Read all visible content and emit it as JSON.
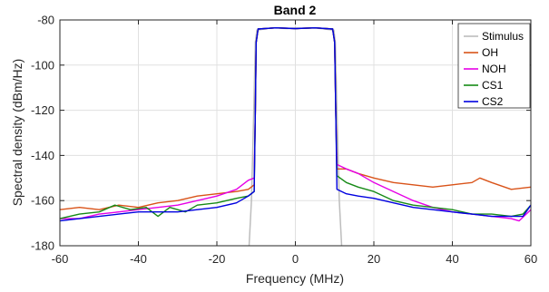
{
  "chart_data": {
    "type": "line",
    "title": "Band 2",
    "xlabel": "Frequency (MHz)",
    "ylabel": "Spectral density (dBm/Hz)",
    "xlim": [
      -60,
      60
    ],
    "ylim": [
      -180,
      -80
    ],
    "xticks": [
      -60,
      -40,
      -20,
      0,
      20,
      40,
      60
    ],
    "yticks": [
      -180,
      -160,
      -140,
      -120,
      -100,
      -80
    ],
    "xtick_labels": [
      "-60",
      "-40",
      "-20",
      "0",
      "20",
      "40",
      "60"
    ],
    "ytick_labels": [
      "-180",
      "-160",
      "-140",
      "-120",
      "-100",
      "-80"
    ],
    "grid": true,
    "legend_position": "top-right",
    "series": [
      {
        "name": "Stimulus",
        "color": "#bdbdbd",
        "points": [
          [
            -11.8,
            -180
          ],
          [
            -11.2,
            -160
          ],
          [
            -10.6,
            -120
          ],
          [
            -10.2,
            -90
          ],
          [
            -9.8,
            -84.5
          ],
          [
            -6,
            -83.5
          ],
          [
            -2,
            -83.8
          ],
          [
            2,
            -83.6
          ],
          [
            6,
            -83.7
          ],
          [
            9.8,
            -84.5
          ],
          [
            10.2,
            -90
          ],
          [
            10.6,
            -120
          ],
          [
            11.2,
            -160
          ],
          [
            11.8,
            -180
          ]
        ]
      },
      {
        "name": "OH",
        "color": "#d95319",
        "points": [
          [
            -60,
            -164
          ],
          [
            -55,
            -163
          ],
          [
            -50,
            -164
          ],
          [
            -45,
            -162
          ],
          [
            -40,
            -163
          ],
          [
            -35,
            -161
          ],
          [
            -30,
            -160
          ],
          [
            -25,
            -158
          ],
          [
            -20,
            -157
          ],
          [
            -15,
            -156
          ],
          [
            -12,
            -155
          ],
          [
            -10.5,
            -153
          ],
          [
            -10.2,
            -120
          ],
          [
            -10,
            -90
          ],
          [
            -9.5,
            -84
          ],
          [
            -5,
            -83.5
          ],
          [
            0,
            -83.8
          ],
          [
            5,
            -83.5
          ],
          [
            9.5,
            -84
          ],
          [
            10,
            -90
          ],
          [
            10.3,
            -120
          ],
          [
            10.6,
            -146
          ],
          [
            13,
            -146
          ],
          [
            16,
            -148
          ],
          [
            20,
            -150
          ],
          [
            25,
            -152
          ],
          [
            30,
            -153
          ],
          [
            35,
            -154
          ],
          [
            40,
            -153
          ],
          [
            45,
            -152
          ],
          [
            47,
            -150
          ],
          [
            50,
            -152
          ],
          [
            55,
            -155
          ],
          [
            60,
            -154
          ]
        ]
      },
      {
        "name": "NOH",
        "color": "#e600e6",
        "points": [
          [
            -60,
            -168
          ],
          [
            -55,
            -168
          ],
          [
            -50,
            -166
          ],
          [
            -45,
            -165
          ],
          [
            -40,
            -164
          ],
          [
            -35,
            -163
          ],
          [
            -30,
            -162
          ],
          [
            -25,
            -160
          ],
          [
            -20,
            -158
          ],
          [
            -15,
            -155
          ],
          [
            -12,
            -151
          ],
          [
            -10.5,
            -150
          ],
          [
            -10.2,
            -120
          ],
          [
            -10,
            -90
          ],
          [
            -9.5,
            -84
          ],
          [
            -5,
            -83.5
          ],
          [
            0,
            -83.8
          ],
          [
            5,
            -83.5
          ],
          [
            9.5,
            -84
          ],
          [
            10,
            -90
          ],
          [
            10.3,
            -120
          ],
          [
            10.6,
            -144
          ],
          [
            13,
            -146
          ],
          [
            16,
            -148
          ],
          [
            20,
            -152
          ],
          [
            25,
            -156
          ],
          [
            30,
            -160
          ],
          [
            35,
            -163
          ],
          [
            40,
            -165
          ],
          [
            45,
            -166
          ],
          [
            50,
            -167
          ],
          [
            55,
            -168
          ],
          [
            57,
            -169
          ],
          [
            60,
            -164
          ]
        ]
      },
      {
        "name": "CS1",
        "color": "#168a16",
        "points": [
          [
            -60,
            -168
          ],
          [
            -55,
            -166
          ],
          [
            -50,
            -165
          ],
          [
            -46,
            -162
          ],
          [
            -42,
            -164
          ],
          [
            -38,
            -163
          ],
          [
            -35,
            -167
          ],
          [
            -32,
            -163
          ],
          [
            -28,
            -165
          ],
          [
            -25,
            -162
          ],
          [
            -20,
            -161
          ],
          [
            -15,
            -159
          ],
          [
            -12,
            -158
          ],
          [
            -10.5,
            -156
          ],
          [
            -10.2,
            -120
          ],
          [
            -10,
            -90
          ],
          [
            -9.5,
            -84
          ],
          [
            -5,
            -83.5
          ],
          [
            0,
            -83.8
          ],
          [
            5,
            -83.5
          ],
          [
            9.5,
            -84
          ],
          [
            10,
            -90
          ],
          [
            10.3,
            -120
          ],
          [
            10.6,
            -149
          ],
          [
            13,
            -152
          ],
          [
            16,
            -154
          ],
          [
            20,
            -156
          ],
          [
            25,
            -160
          ],
          [
            30,
            -162
          ],
          [
            35,
            -163
          ],
          [
            40,
            -164
          ],
          [
            45,
            -166
          ],
          [
            50,
            -166
          ],
          [
            55,
            -167
          ],
          [
            58,
            -166
          ],
          [
            60,
            -162
          ]
        ]
      },
      {
        "name": "CS2",
        "color": "#0000e0",
        "points": [
          [
            -60,
            -169
          ],
          [
            -55,
            -168
          ],
          [
            -50,
            -167
          ],
          [
            -45,
            -166
          ],
          [
            -40,
            -165
          ],
          [
            -35,
            -165
          ],
          [
            -30,
            -165
          ],
          [
            -25,
            -164
          ],
          [
            -20,
            -163
          ],
          [
            -15,
            -161
          ],
          [
            -12,
            -158
          ],
          [
            -10.5,
            -156
          ],
          [
            -10.2,
            -120
          ],
          [
            -10,
            -90
          ],
          [
            -9.5,
            -84
          ],
          [
            -5,
            -83.5
          ],
          [
            0,
            -83.8
          ],
          [
            5,
            -83.5
          ],
          [
            9.5,
            -84
          ],
          [
            10,
            -90
          ],
          [
            10.3,
            -120
          ],
          [
            10.6,
            -155
          ],
          [
            13,
            -157
          ],
          [
            16,
            -158
          ],
          [
            20,
            -159
          ],
          [
            25,
            -161
          ],
          [
            30,
            -163
          ],
          [
            35,
            -164
          ],
          [
            40,
            -165
          ],
          [
            45,
            -166
          ],
          [
            50,
            -167
          ],
          [
            55,
            -167
          ],
          [
            58,
            -167
          ],
          [
            60,
            -162
          ]
        ]
      }
    ]
  }
}
